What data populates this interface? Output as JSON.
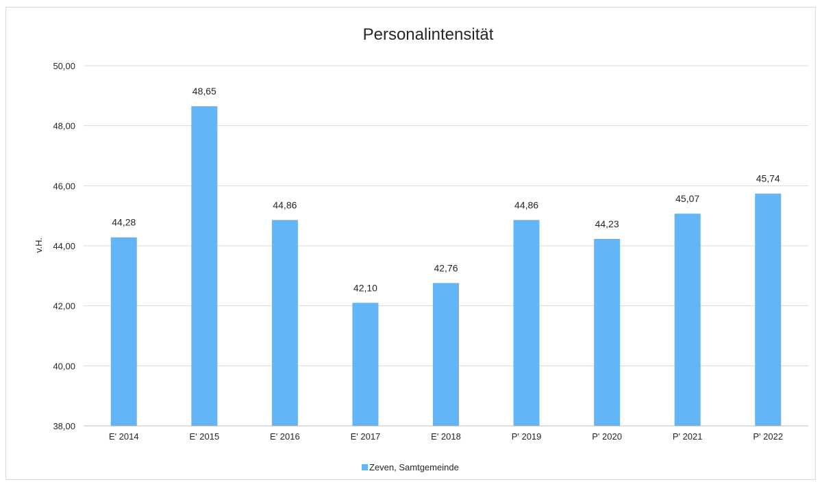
{
  "chart_data": {
    "type": "bar",
    "title": "Personalintensität",
    "xlabel": "",
    "ylabel": "v.H.",
    "ylim": [
      38,
      50
    ],
    "yticks": [
      "38,00",
      "40,00",
      "42,00",
      "44,00",
      "46,00",
      "48,00",
      "50,00"
    ],
    "ytick_values": [
      38,
      40,
      42,
      44,
      46,
      48,
      50
    ],
    "categories": [
      "E' 2014",
      "E' 2015",
      "E' 2016",
      "E' 2017",
      "E' 2018",
      "P' 2019",
      "P' 2020",
      "P' 2021",
      "P' 2022"
    ],
    "series": [
      {
        "name": "Zeven, Samtgemeinde",
        "color": "#63b5f5",
        "values": [
          44.28,
          48.65,
          44.86,
          42.1,
          42.76,
          44.86,
          44.23,
          45.07,
          45.74
        ],
        "labels": [
          "44,28",
          "48,65",
          "44,86",
          "42,10",
          "42,76",
          "44,86",
          "44,23",
          "45,07",
          "45,74"
        ]
      }
    ],
    "grid": true,
    "legend_position": "bottom"
  }
}
